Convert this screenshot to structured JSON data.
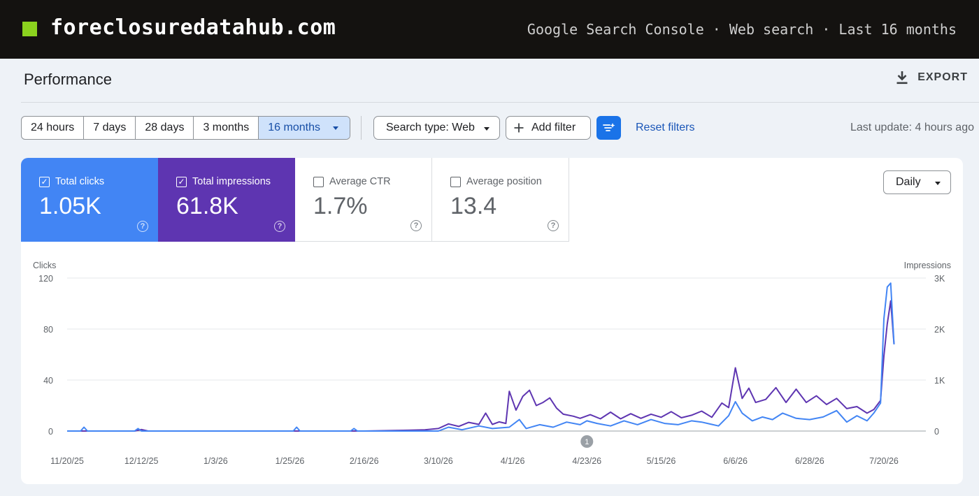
{
  "header": {
    "brand": "foreclosuredatahub.com",
    "context": "Google Search Console · Web search · Last 16 months",
    "brand_color": "#8bd21e"
  },
  "page": {
    "title": "Performance",
    "export_label": "EXPORT"
  },
  "toolbar": {
    "ranges": [
      "24 hours",
      "7 days",
      "28 days",
      "3 months",
      "16 months"
    ],
    "active_range": "16 months",
    "search_type": "Search type: Web",
    "add_filter": "Add filter",
    "reset_filters": "Reset filters",
    "last_update": "Last update: 4 hours ago"
  },
  "metrics": [
    {
      "label": "Total clicks",
      "value": "1.05K",
      "checked": true,
      "color": "#4285f4"
    },
    {
      "label": "Total impressions",
      "value": "61.8K",
      "checked": true,
      "color": "#5e35b1"
    },
    {
      "label": "Average CTR",
      "value": "1.7%",
      "checked": false
    },
    {
      "label": "Average position",
      "value": "13.4",
      "checked": false
    }
  ],
  "granularity": "Daily",
  "chart_data": {
    "type": "line",
    "y_left_label": "Clicks",
    "y_right_label": "Impressions",
    "y_left_ticks": [
      "0",
      "40",
      "80",
      "120"
    ],
    "y_right_ticks": [
      "0",
      "1K",
      "2K",
      "3K"
    ],
    "ylim_left": [
      0,
      120
    ],
    "ylim_right": [
      0,
      3000
    ],
    "x_tick_labels": [
      "11/20/25",
      "12/12/25",
      "1/3/26",
      "1/25/26",
      "2/16/26",
      "3/10/26",
      "4/1/26",
      "4/23/26",
      "5/15/26",
      "6/6/26",
      "6/28/26",
      "7/20/26"
    ],
    "annotation_marker": {
      "label": "1",
      "date": "4/23/26"
    },
    "grid": true,
    "series": [
      {
        "name": "Impressions",
        "axis": "right",
        "color": "#5e35b1",
        "keypoints": [
          [
            "11/20/25",
            0
          ],
          [
            "12/10/25",
            0
          ],
          [
            "12/12/25",
            30
          ],
          [
            "12/14/25",
            0
          ],
          [
            "2/16/26",
            0
          ],
          [
            "3/1/26",
            15
          ],
          [
            "3/6/26",
            25
          ],
          [
            "3/10/26",
            50
          ],
          [
            "3/13/26",
            140
          ],
          [
            "3/16/26",
            90
          ],
          [
            "3/19/26",
            170
          ],
          [
            "3/22/26",
            130
          ],
          [
            "3/24/26",
            350
          ],
          [
            "3/26/26",
            130
          ],
          [
            "3/28/26",
            180
          ],
          [
            "3/30/26",
            150
          ],
          [
            "3/31/26",
            780
          ],
          [
            "4/2/26",
            410
          ],
          [
            "4/4/26",
            680
          ],
          [
            "4/6/26",
            800
          ],
          [
            "4/8/26",
            500
          ],
          [
            "4/10/26",
            560
          ],
          [
            "4/12/26",
            650
          ],
          [
            "4/14/26",
            450
          ],
          [
            "4/16/26",
            330
          ],
          [
            "4/19/26",
            290
          ],
          [
            "4/21/26",
            250
          ],
          [
            "4/24/26",
            320
          ],
          [
            "4/27/26",
            240
          ],
          [
            "4/30/26",
            370
          ],
          [
            "5/3/26",
            240
          ],
          [
            "5/6/26",
            340
          ],
          [
            "5/9/26",
            250
          ],
          [
            "5/12/26",
            330
          ],
          [
            "5/15/26",
            270
          ],
          [
            "5/18/26",
            380
          ],
          [
            "5/21/26",
            260
          ],
          [
            "5/24/26",
            310
          ],
          [
            "5/27/26",
            390
          ],
          [
            "5/30/26",
            270
          ],
          [
            "6/2/26",
            550
          ],
          [
            "6/4/26",
            460
          ],
          [
            "6/6/26",
            1240
          ],
          [
            "6/8/26",
            640
          ],
          [
            "6/10/26",
            840
          ],
          [
            "6/12/26",
            560
          ],
          [
            "6/15/26",
            620
          ],
          [
            "6/18/26",
            850
          ],
          [
            "6/21/26",
            560
          ],
          [
            "6/24/26",
            820
          ],
          [
            "6/27/26",
            560
          ],
          [
            "6/30/26",
            690
          ],
          [
            "7/3/26",
            520
          ],
          [
            "7/6/26",
            640
          ],
          [
            "7/9/26",
            440
          ],
          [
            "7/12/26",
            480
          ],
          [
            "7/15/26",
            350
          ],
          [
            "7/17/26",
            420
          ],
          [
            "7/19/26",
            600
          ],
          [
            "7/20/26",
            1470
          ],
          [
            "7/21/26",
            2100
          ],
          [
            "7/22/26",
            2550
          ],
          [
            "7/23/26",
            1700
          ]
        ]
      },
      {
        "name": "Clicks",
        "axis": "left",
        "color": "#4285f4",
        "keypoints": [
          [
            "11/20/25",
            0
          ],
          [
            "11/24/25",
            0
          ],
          [
            "11/25/25",
            3
          ],
          [
            "11/26/25",
            0
          ],
          [
            "12/10/25",
            0
          ],
          [
            "12/11/25",
            2
          ],
          [
            "12/12/25",
            0
          ],
          [
            "1/26/26",
            0
          ],
          [
            "1/27/26",
            3
          ],
          [
            "1/28/26",
            0
          ],
          [
            "2/12/26",
            0
          ],
          [
            "2/13/26",
            2
          ],
          [
            "2/14/26",
            0
          ],
          [
            "3/10/26",
            0
          ],
          [
            "3/13/26",
            3
          ],
          [
            "3/17/26",
            1
          ],
          [
            "3/22/26",
            4
          ],
          [
            "3/26/26",
            2
          ],
          [
            "3/31/26",
            3
          ],
          [
            "4/3/26",
            9
          ],
          [
            "4/5/26",
            2
          ],
          [
            "4/9/26",
            5
          ],
          [
            "4/13/26",
            3
          ],
          [
            "4/17/26",
            7
          ],
          [
            "4/21/26",
            5
          ],
          [
            "4/23/26",
            8
          ],
          [
            "4/26/26",
            6
          ],
          [
            "4/30/26",
            4
          ],
          [
            "5/4/26",
            8
          ],
          [
            "5/8/26",
            5
          ],
          [
            "5/12/26",
            9
          ],
          [
            "5/16/26",
            6
          ],
          [
            "5/20/26",
            5
          ],
          [
            "5/24/26",
            8
          ],
          [
            "5/27/26",
            7
          ],
          [
            "6/1/26",
            4
          ],
          [
            "6/4/26",
            12
          ],
          [
            "6/6/26",
            23
          ],
          [
            "6/8/26",
            14
          ],
          [
            "6/11/26",
            8
          ],
          [
            "6/14/26",
            11
          ],
          [
            "6/17/26",
            9
          ],
          [
            "6/20/26",
            14
          ],
          [
            "6/24/26",
            10
          ],
          [
            "6/28/26",
            9
          ],
          [
            "7/2/26",
            11
          ],
          [
            "7/6/26",
            16
          ],
          [
            "7/9/26",
            7
          ],
          [
            "7/12/26",
            12
          ],
          [
            "7/15/26",
            8
          ],
          [
            "7/17/26",
            14
          ],
          [
            "7/19/26",
            22
          ],
          [
            "7/20/26",
            88
          ],
          [
            "7/21/26",
            113
          ],
          [
            "7/22/26",
            116
          ],
          [
            "7/23/26",
            68
          ]
        ]
      }
    ]
  }
}
